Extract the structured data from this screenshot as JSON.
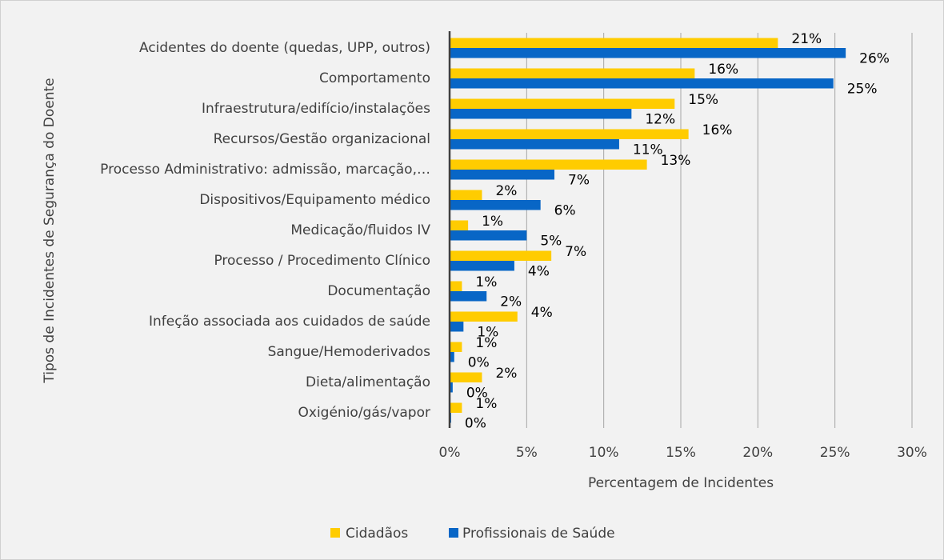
{
  "chart_data": {
    "type": "bar",
    "orientation": "horizontal",
    "xlabel": "Percentagem de Incidentes",
    "ylabel": "Tipos de Incidentes de Segurança do Doente",
    "categories": [
      "Acidentes do doente (quedas, UPP, outros)",
      "Comportamento",
      "Infraestrutura/edifício/instalações",
      "Recursos/Gestão organizacional",
      "Processo Administrativo: admissão, marcação,…",
      "Dispositivos/Equipamento médico",
      "Medicação/fluidos IV",
      "Processo / Procedimento Clínico",
      "Documentação",
      "Infeção associada aos cuidados de saúde",
      "Sangue/Hemoderivados",
      "Dieta/alimentação",
      "Oxigénio/gás/vapor"
    ],
    "series": [
      {
        "name": "Cidadãos",
        "color": "#ffcc00",
        "values": [
          21.3,
          15.9,
          14.6,
          15.5,
          12.8,
          2.1,
          1.2,
          6.6,
          0.8,
          4.4,
          0.8,
          2.1,
          0.8
        ],
        "value_labels": [
          "21%",
          "16%",
          "15%",
          "16%",
          "13%",
          "2%",
          "1%",
          "7%",
          "1%",
          "4%",
          "1%",
          "2%",
          "1%"
        ]
      },
      {
        "name": "Profissionais de Saúde",
        "color": "#0866c6",
        "values": [
          25.7,
          24.9,
          11.8,
          11.0,
          6.8,
          5.9,
          5.0,
          4.2,
          2.4,
          0.9,
          0.3,
          0.2,
          0.1
        ],
        "value_labels": [
          "26%",
          "25%",
          "12%",
          "11%",
          "7%",
          "6%",
          "5%",
          "4%",
          "2%",
          "1%",
          "0%",
          "0%",
          "0%"
        ]
      }
    ],
    "xlim": [
      0,
      30
    ],
    "xticks": [
      {
        "value": 0,
        "label": "0%"
      },
      {
        "value": 5,
        "label": "5%"
      },
      {
        "value": 10,
        "label": "10%"
      },
      {
        "value": 15,
        "label": "15%"
      },
      {
        "value": 20,
        "label": "20%"
      },
      {
        "value": 25,
        "label": "25%"
      },
      {
        "value": 30,
        "label": "30%"
      }
    ],
    "grid": true,
    "legend": "bottom"
  }
}
